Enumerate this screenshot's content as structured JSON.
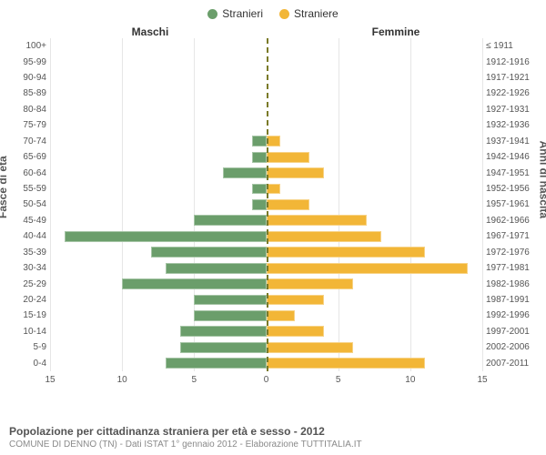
{
  "chart": {
    "type": "population-pyramid",
    "legend": {
      "male": {
        "label": "Stranieri",
        "color": "#6b9e6b"
      },
      "female": {
        "label": "Straniere",
        "color": "#f2b637"
      }
    },
    "col_titles": {
      "left": "Maschi",
      "right": "Femmine"
    },
    "y_left_title": "Fasce di età",
    "y_right_title": "Anni di nascita",
    "x_max": 15,
    "x_ticks": [
      15,
      10,
      5,
      0,
      5,
      10,
      15
    ],
    "grid_color": "#e6e6e6",
    "center_line_color": "#7a7a28",
    "background_color": "#ffffff",
    "label_fontsize": 10,
    "title_fontsize": 12,
    "rows": [
      {
        "age": "100+",
        "birth": "≤ 1911",
        "m": 0,
        "f": 0
      },
      {
        "age": "95-99",
        "birth": "1912-1916",
        "m": 0,
        "f": 0
      },
      {
        "age": "90-94",
        "birth": "1917-1921",
        "m": 0,
        "f": 0
      },
      {
        "age": "85-89",
        "birth": "1922-1926",
        "m": 0,
        "f": 0
      },
      {
        "age": "80-84",
        "birth": "1927-1931",
        "m": 0,
        "f": 0
      },
      {
        "age": "75-79",
        "birth": "1932-1936",
        "m": 0,
        "f": 0
      },
      {
        "age": "70-74",
        "birth": "1937-1941",
        "m": 1,
        "f": 1
      },
      {
        "age": "65-69",
        "birth": "1942-1946",
        "m": 1,
        "f": 3
      },
      {
        "age": "60-64",
        "birth": "1947-1951",
        "m": 3,
        "f": 4
      },
      {
        "age": "55-59",
        "birth": "1952-1956",
        "m": 1,
        "f": 1
      },
      {
        "age": "50-54",
        "birth": "1957-1961",
        "m": 1,
        "f": 3
      },
      {
        "age": "45-49",
        "birth": "1962-1966",
        "m": 5,
        "f": 7
      },
      {
        "age": "40-44",
        "birth": "1967-1971",
        "m": 14,
        "f": 8
      },
      {
        "age": "35-39",
        "birth": "1972-1976",
        "m": 8,
        "f": 11
      },
      {
        "age": "30-34",
        "birth": "1977-1981",
        "m": 7,
        "f": 14
      },
      {
        "age": "25-29",
        "birth": "1982-1986",
        "m": 10,
        "f": 6
      },
      {
        "age": "20-24",
        "birth": "1987-1991",
        "m": 5,
        "f": 4
      },
      {
        "age": "15-19",
        "birth": "1992-1996",
        "m": 5,
        "f": 2
      },
      {
        "age": "10-14",
        "birth": "1997-2001",
        "m": 6,
        "f": 4
      },
      {
        "age": "5-9",
        "birth": "2002-2006",
        "m": 6,
        "f": 6
      },
      {
        "age": "0-4",
        "birth": "2007-2011",
        "m": 7,
        "f": 11
      }
    ],
    "footer": {
      "line1": "Popolazione per cittadinanza straniera per età e sesso - 2012",
      "line2": "COMUNE DI DENNO (TN) - Dati ISTAT 1° gennaio 2012 - Elaborazione TUTTITALIA.IT"
    }
  }
}
